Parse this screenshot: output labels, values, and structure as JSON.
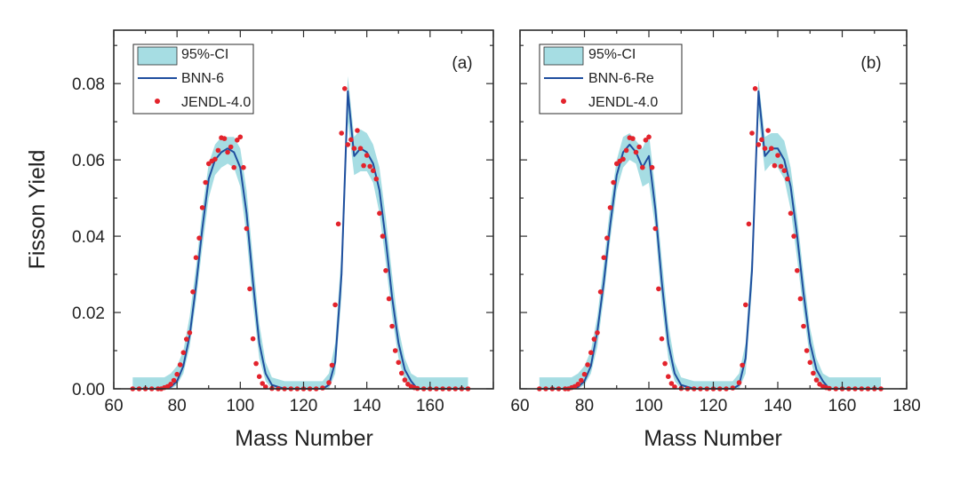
{
  "figure": {
    "ylabel": "Fisson Yield",
    "xlabel": "Mass Number",
    "colors": {
      "ci": "#a6dde3",
      "model": "#1f4e9e",
      "data": "#e3232c",
      "frame": "#2b2b2b"
    }
  },
  "chart_data": [
    {
      "type": "line",
      "panel_label": "(a)",
      "xlabel": "Mass Number",
      "ylabel": "Fisson Yield",
      "xlim": [
        60,
        180
      ],
      "ylim": [
        0,
        0.094
      ],
      "x_ticks": [
        "60",
        "80",
        "100",
        "120",
        "140",
        "160"
      ],
      "y_ticks": [
        "0.00",
        "0.02",
        "0.04",
        "0.06",
        "0.08"
      ],
      "legend_position": "top-left",
      "legend": [
        "95%-CI",
        "BNN-6",
        "JENDL-4.0"
      ],
      "series": [
        {
          "name": "95%-CI",
          "kind": "band",
          "x": [
            66,
            76,
            78,
            80,
            82,
            84,
            86,
            88,
            90,
            92,
            94,
            96,
            98,
            100,
            102,
            104,
            106,
            108,
            110,
            114,
            120,
            126,
            128,
            130,
            132,
            134,
            136,
            138,
            140,
            142,
            144,
            146,
            148,
            150,
            152,
            154,
            156,
            160,
            166,
            172
          ],
          "lower": [
            0,
            0,
            0,
            0.001,
            0.004,
            0.011,
            0.023,
            0.037,
            0.05,
            0.056,
            0.058,
            0.059,
            0.058,
            0.053,
            0.04,
            0.022,
            0.008,
            0.002,
            0,
            0,
            0,
            0,
            0,
            0.004,
            0.024,
            0.07,
            0.056,
            0.057,
            0.057,
            0.054,
            0.046,
            0.033,
            0.019,
            0.008,
            0.002,
            0,
            0,
            0,
            0,
            0
          ],
          "upper": [
            0.003,
            0.003,
            0.004,
            0.006,
            0.01,
            0.019,
            0.032,
            0.047,
            0.059,
            0.064,
            0.066,
            0.066,
            0.066,
            0.063,
            0.052,
            0.034,
            0.017,
            0.007,
            0.003,
            0.002,
            0.002,
            0.002,
            0.004,
            0.012,
            0.036,
            0.082,
            0.066,
            0.068,
            0.067,
            0.064,
            0.058,
            0.045,
            0.03,
            0.016,
            0.008,
            0.004,
            0.003,
            0.003,
            0.003,
            0.003
          ]
        },
        {
          "name": "BNN-6",
          "kind": "line",
          "x": [
            66,
            76,
            78,
            80,
            82,
            84,
            86,
            88,
            90,
            92,
            94,
            96,
            98,
            100,
            102,
            104,
            106,
            108,
            110,
            114,
            120,
            126,
            128,
            130,
            132,
            134,
            136,
            138,
            140,
            142,
            144,
            146,
            148,
            150,
            152,
            154,
            156,
            160,
            166,
            172
          ],
          "y": [
            0,
            0,
            0.0005,
            0.002,
            0.006,
            0.014,
            0.027,
            0.042,
            0.055,
            0.06,
            0.062,
            0.063,
            0.062,
            0.058,
            0.046,
            0.028,
            0.012,
            0.004,
            0.001,
            0,
            0,
            0,
            0.001,
            0.007,
            0.03,
            0.078,
            0.061,
            0.063,
            0.062,
            0.059,
            0.052,
            0.039,
            0.024,
            0.012,
            0.005,
            0.002,
            0,
            0,
            0,
            0
          ]
        },
        {
          "name": "JENDL-4.0",
          "kind": "scatter",
          "x": [
            66,
            68,
            70,
            72,
            74,
            75,
            76,
            77,
            78,
            79,
            80,
            81,
            82,
            83,
            84,
            85,
            86,
            87,
            88,
            89,
            90,
            91,
            92,
            93,
            94,
            95,
            96,
            97,
            98,
            99,
            100,
            101,
            102,
            103,
            104,
            105,
            106,
            107,
            108,
            110,
            112,
            114,
            116,
            118,
            120,
            122,
            124,
            126,
            128,
            129,
            130,
            131,
            132,
            133,
            134,
            135,
            136,
            137,
            138,
            139,
            140,
            141,
            142,
            143,
            144,
            145,
            146,
            147,
            148,
            149,
            150,
            151,
            152,
            153,
            154,
            155,
            156,
            158,
            160,
            162,
            164,
            166,
            168,
            170,
            172
          ],
          "y": [
            0,
            0,
            0,
            0,
            0,
            0,
            0.0003,
            0.0006,
            0.0012,
            0.0022,
            0.0038,
            0.0063,
            0.0095,
            0.013,
            0.0147,
            0.0254,
            0.0344,
            0.0395,
            0.0475,
            0.0541,
            0.059,
            0.0597,
            0.0602,
            0.0625,
            0.0658,
            0.0656,
            0.062,
            0.0634,
            0.058,
            0.0652,
            0.066,
            0.058,
            0.042,
            0.0262,
            0.0131,
            0.0066,
            0.0032,
            0.0014,
            0.0005,
            0.0001,
            0,
            0,
            0,
            0,
            0,
            0,
            0,
            0.0002,
            0.0016,
            0.0062,
            0.022,
            0.0432,
            0.067,
            0.0787,
            0.064,
            0.0653,
            0.063,
            0.0677,
            0.063,
            0.0585,
            0.0612,
            0.0583,
            0.0572,
            0.055,
            0.046,
            0.04,
            0.031,
            0.0236,
            0.0164,
            0.01,
            0.0069,
            0.0041,
            0.0023,
            0.0012,
            0.0006,
            0.0003,
            0.0001,
            0,
            0,
            0,
            0,
            0,
            0,
            0,
            0
          ]
        }
      ]
    },
    {
      "type": "line",
      "panel_label": "(b)",
      "xlabel": "Mass Number",
      "ylabel": "",
      "xlim": [
        60,
        180
      ],
      "ylim": [
        0,
        0.094
      ],
      "x_ticks": [
        "60",
        "80",
        "100",
        "120",
        "140",
        "160",
        "180"
      ],
      "y_ticks": [],
      "legend_position": "top-left",
      "legend": [
        "95%-CI",
        "BNN-6-Re",
        "JENDL-4.0"
      ],
      "series": [
        {
          "name": "95%-CI",
          "kind": "band",
          "x": [
            66,
            76,
            78,
            80,
            82,
            84,
            86,
            88,
            90,
            92,
            94,
            96,
            98,
            100,
            102,
            104,
            106,
            108,
            110,
            114,
            120,
            126,
            128,
            130,
            132,
            134,
            136,
            138,
            140,
            142,
            144,
            146,
            148,
            150,
            152,
            154,
            156,
            160,
            166,
            172
          ],
          "lower": [
            0,
            0,
            0,
            0.001,
            0.004,
            0.011,
            0.024,
            0.039,
            0.052,
            0.058,
            0.06,
            0.059,
            0.053,
            0.054,
            0.042,
            0.022,
            0.008,
            0.002,
            0,
            0,
            0,
            0,
            0,
            0.004,
            0.026,
            0.072,
            0.057,
            0.059,
            0.058,
            0.055,
            0.047,
            0.034,
            0.02,
            0.008,
            0.002,
            0,
            0,
            0,
            0,
            0
          ],
          "upper": [
            0.003,
            0.003,
            0.004,
            0.006,
            0.01,
            0.019,
            0.033,
            0.048,
            0.06,
            0.066,
            0.067,
            0.065,
            0.063,
            0.067,
            0.052,
            0.034,
            0.017,
            0.007,
            0.003,
            0.002,
            0.002,
            0.002,
            0.004,
            0.012,
            0.036,
            0.081,
            0.066,
            0.067,
            0.067,
            0.065,
            0.058,
            0.045,
            0.03,
            0.016,
            0.008,
            0.004,
            0.003,
            0.003,
            0.003,
            0.003
          ]
        },
        {
          "name": "BNN-6-Re",
          "kind": "line",
          "x": [
            66,
            76,
            78,
            80,
            82,
            84,
            86,
            88,
            90,
            92,
            94,
            96,
            98,
            100,
            102,
            104,
            106,
            108,
            110,
            114,
            120,
            126,
            128,
            130,
            132,
            134,
            136,
            138,
            140,
            142,
            144,
            146,
            148,
            150,
            152,
            154,
            156,
            160,
            166,
            172
          ],
          "y": [
            0,
            0,
            0.0005,
            0.002,
            0.006,
            0.015,
            0.028,
            0.043,
            0.056,
            0.062,
            0.064,
            0.062,
            0.058,
            0.061,
            0.047,
            0.028,
            0.012,
            0.004,
            0.001,
            0,
            0,
            0,
            0.001,
            0.008,
            0.031,
            0.078,
            0.061,
            0.063,
            0.063,
            0.06,
            0.053,
            0.04,
            0.025,
            0.012,
            0.005,
            0.002,
            0,
            0,
            0,
            0
          ]
        },
        {
          "name": "JENDL-4.0",
          "kind": "scatter",
          "x": [
            66,
            68,
            70,
            72,
            74,
            75,
            76,
            77,
            78,
            79,
            80,
            81,
            82,
            83,
            84,
            85,
            86,
            87,
            88,
            89,
            90,
            91,
            92,
            93,
            94,
            95,
            96,
            97,
            98,
            99,
            100,
            101,
            102,
            103,
            104,
            105,
            106,
            107,
            108,
            110,
            112,
            114,
            116,
            118,
            120,
            122,
            124,
            126,
            128,
            129,
            130,
            131,
            132,
            133,
            134,
            135,
            136,
            137,
            138,
            139,
            140,
            141,
            142,
            143,
            144,
            145,
            146,
            147,
            148,
            149,
            150,
            151,
            152,
            153,
            154,
            155,
            156,
            158,
            160,
            162,
            164,
            166,
            168,
            170,
            172
          ],
          "y": [
            0,
            0,
            0,
            0,
            0,
            0,
            0.0003,
            0.0006,
            0.0012,
            0.0022,
            0.0038,
            0.0063,
            0.0095,
            0.013,
            0.0147,
            0.0254,
            0.0344,
            0.0395,
            0.0475,
            0.0541,
            0.059,
            0.0597,
            0.0602,
            0.0625,
            0.0658,
            0.0656,
            0.062,
            0.0634,
            0.058,
            0.0652,
            0.066,
            0.058,
            0.042,
            0.0262,
            0.0131,
            0.0066,
            0.0032,
            0.0014,
            0.0005,
            0.0001,
            0,
            0,
            0,
            0,
            0,
            0,
            0,
            0.0002,
            0.0016,
            0.0062,
            0.022,
            0.0432,
            0.067,
            0.0787,
            0.064,
            0.0653,
            0.063,
            0.0677,
            0.063,
            0.0585,
            0.0612,
            0.0583,
            0.0572,
            0.055,
            0.046,
            0.04,
            0.031,
            0.0236,
            0.0164,
            0.01,
            0.0069,
            0.0041,
            0.0023,
            0.0012,
            0.0006,
            0.0003,
            0.0001,
            0,
            0,
            0,
            0,
            0,
            0,
            0,
            0
          ]
        }
      ]
    }
  ]
}
